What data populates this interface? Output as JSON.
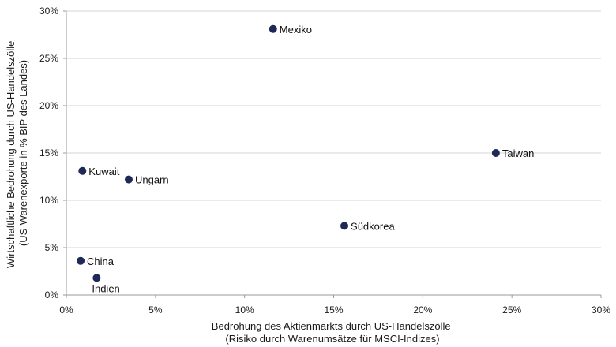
{
  "chart_data": {
    "type": "scatter",
    "xlabel_lines": [
      "Bedrohung des Aktienmarkts durch US-Handelszölle",
      "(Risiko durch Warenumsätze für MSCI-Indizes)"
    ],
    "ylabel_lines": [
      "Wirtschaftliche Bedrohung durch US-Handelszölle",
      "(US-Warenexporte in % BIP des Landes)"
    ],
    "xlim": [
      0,
      30
    ],
    "ylim": [
      0,
      30
    ],
    "x_ticks": [
      0,
      5,
      10,
      15,
      20,
      25,
      30
    ],
    "y_ticks": [
      0,
      5,
      10,
      15,
      20,
      25,
      30
    ],
    "x_tick_labels": [
      "0%",
      "5%",
      "10%",
      "15%",
      "20%",
      "25%",
      "30%"
    ],
    "y_tick_labels": [
      "0%",
      "5%",
      "10%",
      "15%",
      "20%",
      "25%",
      "30%"
    ],
    "grid": "horizontal",
    "marker_color": "#1e2a55",
    "points": [
      {
        "label": "Mexiko",
        "x": 11.6,
        "y": 28.1,
        "label_pos": "right"
      },
      {
        "label": "Taiwan",
        "x": 24.1,
        "y": 15.0,
        "label_pos": "right"
      },
      {
        "label": "Kuwait",
        "x": 0.9,
        "y": 13.1,
        "label_pos": "right"
      },
      {
        "label": "Ungarn",
        "x": 3.5,
        "y": 12.2,
        "label_pos": "right"
      },
      {
        "label": "Südkorea",
        "x": 15.6,
        "y": 7.3,
        "label_pos": "right"
      },
      {
        "label": "China",
        "x": 0.8,
        "y": 3.6,
        "label_pos": "right"
      },
      {
        "label": "Indien",
        "x": 1.7,
        "y": 1.8,
        "label_pos": "below"
      }
    ]
  }
}
